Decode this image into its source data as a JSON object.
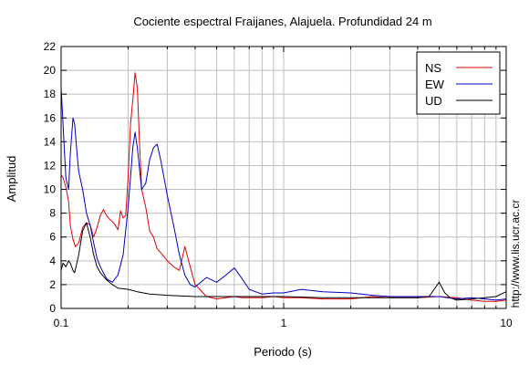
{
  "chart_data": {
    "type": "line",
    "title": "Cociente espectral Fraijanes, Alajuela. Profundidad 24 m",
    "xlabel": "Periodo (s)",
    "ylabel": "Amplitud",
    "x_scale": "log",
    "xlim": [
      0.1,
      10
    ],
    "ylim": [
      0,
      22
    ],
    "x_ticks": [
      0.1,
      1,
      10
    ],
    "x_tick_labels": [
      "0.1",
      "1",
      "10"
    ],
    "y_ticks": [
      0,
      2,
      4,
      6,
      8,
      10,
      12,
      14,
      16,
      18,
      20,
      22
    ],
    "grid": true,
    "legend_position": "top-right",
    "watermark": "http://www.lis.ucr.ac.cr",
    "series": [
      {
        "name": "NS",
        "color": "#e00000",
        "x": [
          0.1,
          0.102,
          0.105,
          0.108,
          0.11,
          0.113,
          0.116,
          0.12,
          0.125,
          0.13,
          0.135,
          0.14,
          0.145,
          0.15,
          0.155,
          0.16,
          0.165,
          0.17,
          0.175,
          0.18,
          0.185,
          0.19,
          0.195,
          0.2,
          0.205,
          0.21,
          0.215,
          0.22,
          0.225,
          0.23,
          0.24,
          0.25,
          0.26,
          0.27,
          0.28,
          0.3,
          0.32,
          0.34,
          0.36,
          0.38,
          0.4,
          0.42,
          0.45,
          0.5,
          0.55,
          0.6,
          0.65,
          0.7,
          0.8,
          0.9,
          1.0,
          1.2,
          1.5,
          2.0,
          2.5,
          3.0,
          4.0,
          5.0,
          6.0,
          7.0,
          8.0,
          9.0,
          10.0
        ],
        "values": [
          11.2,
          11.0,
          10.2,
          9.0,
          7.0,
          5.8,
          5.2,
          5.5,
          6.8,
          7.2,
          7.0,
          6.0,
          6.8,
          7.8,
          8.3,
          7.8,
          7.5,
          7.3,
          7.0,
          6.6,
          8.2,
          7.6,
          7.8,
          11.0,
          15.5,
          17.5,
          19.8,
          18.5,
          14.0,
          10.0,
          8.5,
          6.5,
          6.0,
          5.0,
          4.7,
          4.0,
          3.5,
          3.2,
          5.2,
          3.5,
          2.0,
          1.6,
          1.0,
          0.8,
          0.9,
          1.0,
          0.9,
          0.9,
          0.9,
          1.0,
          0.9,
          0.9,
          0.8,
          0.8,
          1.0,
          0.9,
          0.9,
          1.0,
          0.9,
          0.7,
          0.6,
          0.6,
          0.7
        ]
      },
      {
        "name": "EW",
        "color": "#0000c8",
        "x": [
          0.1,
          0.101,
          0.103,
          0.105,
          0.108,
          0.11,
          0.113,
          0.115,
          0.118,
          0.12,
          0.125,
          0.13,
          0.135,
          0.14,
          0.145,
          0.15,
          0.155,
          0.16,
          0.17,
          0.18,
          0.19,
          0.2,
          0.205,
          0.21,
          0.215,
          0.22,
          0.23,
          0.24,
          0.25,
          0.26,
          0.27,
          0.28,
          0.29,
          0.3,
          0.32,
          0.34,
          0.36,
          0.38,
          0.4,
          0.45,
          0.5,
          0.55,
          0.6,
          0.65,
          0.7,
          0.8,
          0.9,
          1.0,
          1.2,
          1.5,
          2.0,
          2.5,
          3.0,
          4.0,
          5.0,
          6.0,
          7.0,
          8.0,
          9.0,
          10.0
        ],
        "values": [
          18.5,
          17.0,
          14.0,
          11.0,
          10.0,
          13.0,
          16.0,
          15.5,
          13.0,
          11.5,
          10.0,
          8.0,
          7.0,
          5.5,
          4.2,
          3.5,
          3.0,
          2.5,
          2.2,
          2.8,
          4.5,
          8.5,
          11.0,
          13.5,
          14.8,
          13.5,
          10.0,
          10.5,
          12.5,
          13.5,
          13.8,
          12.5,
          11.0,
          9.5,
          7.0,
          4.5,
          2.8,
          2.0,
          1.8,
          2.6,
          2.2,
          2.8,
          3.4,
          2.5,
          1.6,
          1.2,
          1.3,
          1.3,
          1.6,
          1.4,
          1.3,
          1.1,
          1.0,
          1.0,
          1.0,
          0.8,
          0.9,
          0.8,
          0.7,
          0.8
        ]
      },
      {
        "name": "UD",
        "color": "#000000",
        "x": [
          0.1,
          0.102,
          0.105,
          0.108,
          0.11,
          0.113,
          0.115,
          0.12,
          0.125,
          0.13,
          0.135,
          0.14,
          0.145,
          0.15,
          0.155,
          0.16,
          0.17,
          0.18,
          0.2,
          0.22,
          0.25,
          0.3,
          0.4,
          0.5,
          0.7,
          1.0,
          1.5,
          2.0,
          3.0,
          4.0,
          4.5,
          5.0,
          5.3,
          5.6,
          6.0,
          7.0,
          8.0,
          9.0,
          10.0
        ],
        "values": [
          3.2,
          3.8,
          3.5,
          4.0,
          3.8,
          3.2,
          3.0,
          4.5,
          6.5,
          7.2,
          6.0,
          4.5,
          3.5,
          3.0,
          2.7,
          2.4,
          2.0,
          1.7,
          1.6,
          1.4,
          1.2,
          1.1,
          1.0,
          1.0,
          1.0,
          1.0,
          0.9,
          0.9,
          0.9,
          0.9,
          1.0,
          2.2,
          1.3,
          0.9,
          0.7,
          0.8,
          0.9,
          1.0,
          1.4
        ]
      }
    ]
  }
}
